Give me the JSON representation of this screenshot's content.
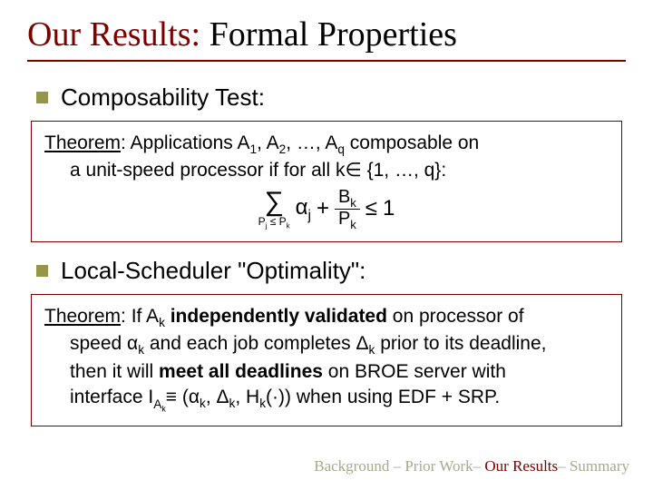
{
  "title": {
    "prefix": "Our Results:",
    "suffix": "  Formal Properties",
    "accent_color": "#7a0000",
    "fontsize": 38,
    "underline_color": "#7a0000"
  },
  "bullets": [
    {
      "text": "Composability Test:",
      "bullet_color": "#96964b",
      "fontsize": 26
    },
    {
      "text": "Local-Scheduler \"Optimality\":",
      "bullet_color": "#96964b",
      "fontsize": 26
    }
  ],
  "theorem1": {
    "label": "Theorem",
    "line1_after_label": ":  Applications A",
    "line1_rest": " composable on",
    "seq_items": [
      "1",
      "2",
      "q"
    ],
    "line2": "a unit-speed processor if for all k∈ {1, …, q}:",
    "formula": {
      "sigma": "∑",
      "sigma_sub": "Pj ≤ Pk",
      "term1": "αj",
      "plus": "+",
      "frac_num": "Bk",
      "frac_den": "Pk",
      "leq": "≤",
      "rhs": "1"
    },
    "border_color": "#7a0000",
    "fontsize": 21
  },
  "theorem2": {
    "label": "Theorem",
    "text_parts": {
      "p1": ":  If A",
      "sub1": "k",
      "bold1": " independently validated",
      "p2": " on processor of",
      "line2a": "speed α",
      "sub2": "k",
      "line2b": " and each job completes Δ",
      "sub3": "k",
      "line2c": " prior to its deadline,",
      "line3a": "then it will ",
      "bold2": "meet all deadlines",
      "line3b": " on BROE server with",
      "line4a": "interface  I",
      "sub4": "Ak",
      "line4b": "≡ (α",
      "sub5": "k",
      "line4c": ", Δ",
      "sub6": "k",
      "line4d": ", H",
      "sub7": "k",
      "line4e": "(·)) when using EDF + SRP."
    },
    "border_color": "#7a0000",
    "fontsize": 21
  },
  "footer": {
    "items": [
      "Background",
      "Prior Work",
      "Our Results",
      "Summary"
    ],
    "separator": " – ",
    "active_index": 2,
    "color": "#a6a98f",
    "active_color": "#7a0000",
    "fontsize": 17
  }
}
